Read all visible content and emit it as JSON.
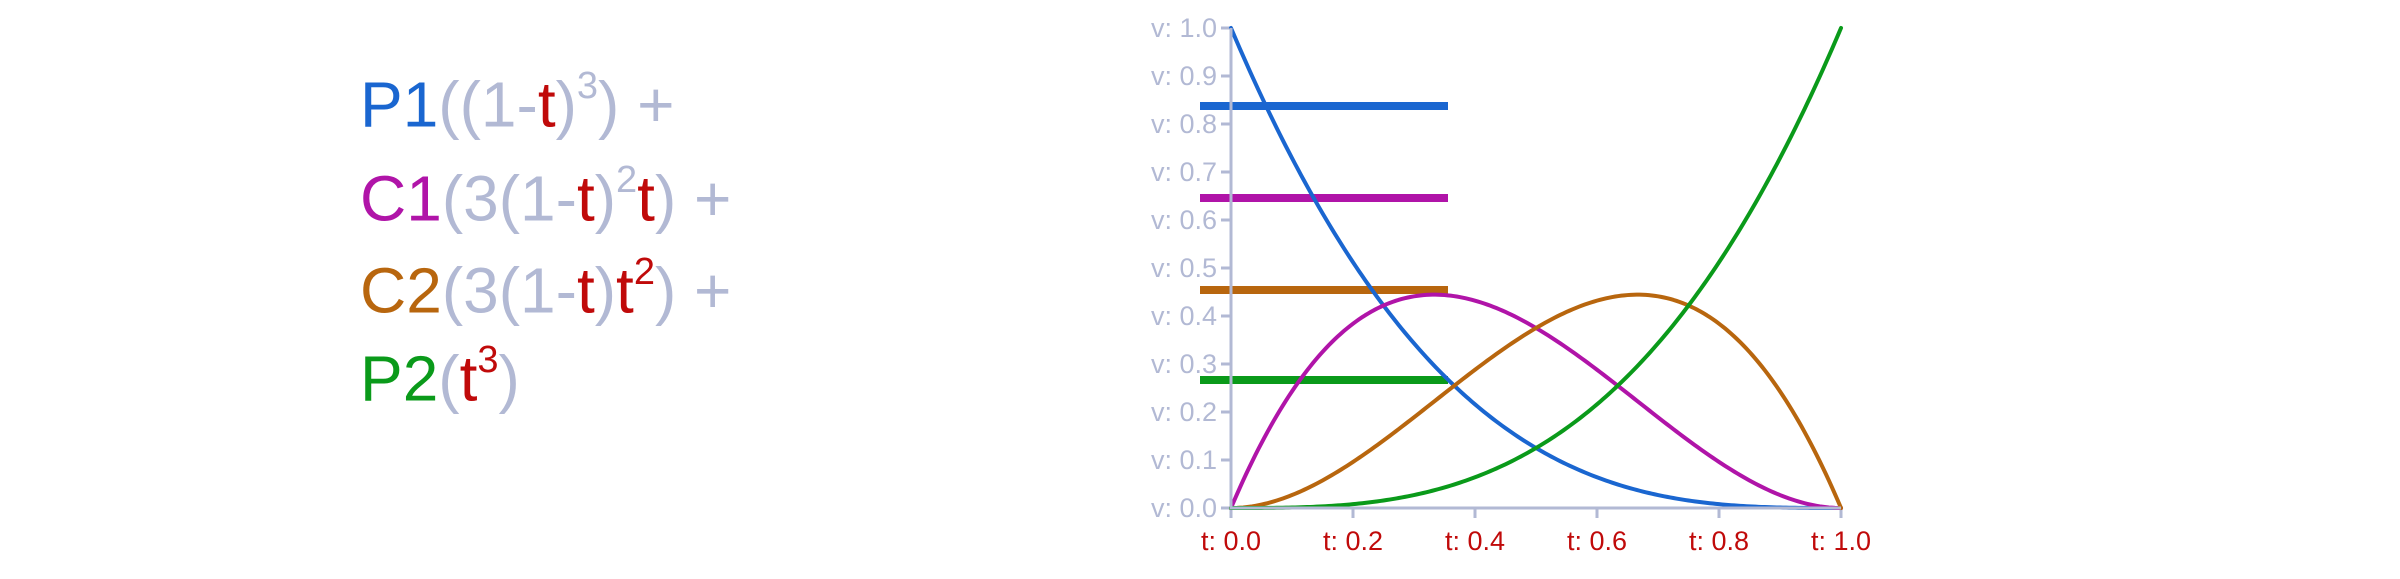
{
  "colors": {
    "p1": "#1a66d0",
    "c1": "#b014a8",
    "c2": "#b8660e",
    "p2": "#0a9a1a",
    "t": "#c00a0a",
    "gray": "#b2b9d4",
    "axis": "#b2b9d4"
  },
  "legend": {
    "rows": [
      {
        "key": "p1",
        "label": "P1",
        "parts": [
          {
            "text": "((1-",
            "c": "gray"
          },
          {
            "text": "t",
            "c": "t"
          },
          {
            "text": ")",
            "c": "gray"
          },
          {
            "text": "3",
            "c": "gray",
            "sup": true
          },
          {
            "text": ") +",
            "c": "gray"
          }
        ]
      },
      {
        "key": "c1",
        "label": "C1",
        "parts": [
          {
            "text": "(3(1-",
            "c": "gray"
          },
          {
            "text": "t",
            "c": "t"
          },
          {
            "text": ")",
            "c": "gray"
          },
          {
            "text": "2",
            "c": "gray",
            "sup": true
          },
          {
            "text": "t",
            "c": "t"
          },
          {
            "text": ") +",
            "c": "gray"
          }
        ]
      },
      {
        "key": "c2",
        "label": "C2",
        "parts": [
          {
            "text": "(3(1-",
            "c": "gray"
          },
          {
            "text": "t",
            "c": "t"
          },
          {
            "text": ")",
            "c": "gray"
          },
          {
            "text": "t",
            "c": "t"
          },
          {
            "text": "2",
            "c": "t",
            "sup": true
          },
          {
            "text": ") +",
            "c": "gray"
          }
        ]
      },
      {
        "key": "p2",
        "label": "P2",
        "parts": [
          {
            "text": "(",
            "c": "gray"
          },
          {
            "text": "t",
            "c": "t"
          },
          {
            "text": "3",
            "c": "t",
            "sup": true
          },
          {
            "text": ")",
            "c": "gray"
          }
        ]
      }
    ]
  },
  "chart_data": {
    "type": "line",
    "xlabel": "",
    "ylabel": "",
    "xlim": [
      0,
      1
    ],
    "ylim": [
      0,
      1
    ],
    "x_ticks": [
      0.0,
      0.2,
      0.4,
      0.6,
      0.8,
      1.0
    ],
    "y_ticks": [
      0.0,
      0.1,
      0.2,
      0.3,
      0.4,
      0.5,
      0.6,
      0.7,
      0.8,
      0.9,
      1.0
    ],
    "x_tick_labels": [
      "t: 0.0",
      "t: 0.2",
      "t: 0.4",
      "t: 0.6",
      "t: 0.8",
      "t: 1.0"
    ],
    "y_tick_labels": [
      "v: 0.0",
      "v: 0.1",
      "v: 0.2",
      "v: 0.3",
      "v: 0.4",
      "v: 0.5",
      "v: 0.6",
      "v: 0.7",
      "v: 0.8",
      "v: 0.9",
      "v: 1.0"
    ],
    "x": [
      0.0,
      0.05,
      0.1,
      0.15,
      0.2,
      0.25,
      0.3,
      0.35,
      0.4,
      0.45,
      0.5,
      0.55,
      0.6,
      0.65,
      0.7,
      0.75,
      0.8,
      0.85,
      0.9,
      0.95,
      1.0
    ],
    "series": [
      {
        "key": "p1",
        "values": [
          1.0,
          0.857,
          0.729,
          0.614,
          0.512,
          0.422,
          0.343,
          0.275,
          0.216,
          0.166,
          0.125,
          0.091,
          0.064,
          0.043,
          0.027,
          0.016,
          0.008,
          0.003,
          0.001,
          0.0,
          0.0
        ]
      },
      {
        "key": "c1",
        "values": [
          0.0,
          0.135,
          0.243,
          0.325,
          0.384,
          0.422,
          0.441,
          0.444,
          0.432,
          0.408,
          0.375,
          0.334,
          0.288,
          0.239,
          0.189,
          0.141,
          0.096,
          0.057,
          0.027,
          0.007,
          0.0
        ]
      },
      {
        "key": "c2",
        "values": [
          0.0,
          0.007,
          0.027,
          0.057,
          0.096,
          0.141,
          0.189,
          0.239,
          0.288,
          0.334,
          0.375,
          0.408,
          0.432,
          0.444,
          0.441,
          0.422,
          0.384,
          0.325,
          0.243,
          0.135,
          0.0
        ]
      },
      {
        "key": "p2",
        "values": [
          0.0,
          0.0,
          0.001,
          0.003,
          0.008,
          0.016,
          0.027,
          0.043,
          0.064,
          0.091,
          0.125,
          0.166,
          0.216,
          0.275,
          0.343,
          0.422,
          0.512,
          0.614,
          0.729,
          0.857,
          1.0
        ]
      }
    ]
  }
}
